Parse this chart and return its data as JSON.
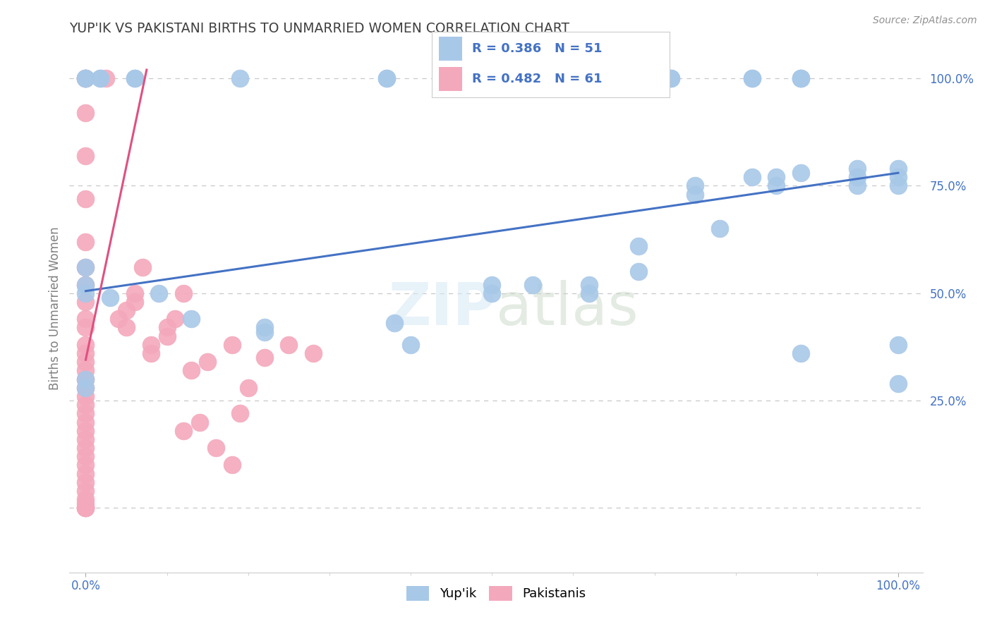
{
  "title": "YUP'IK VS PAKISTANI BIRTHS TO UNMARRIED WOMEN CORRELATION CHART",
  "source": "Source: ZipAtlas.com",
  "ylabel": "Births to Unmarried Women",
  "watermark": "ZIPatlas",
  "blue_color": "#A8C8E8",
  "pink_color": "#F4A8BC",
  "blue_line_color": "#4472C4",
  "pink_line_color": "#E05080",
  "title_color": "#404040",
  "axis_label_color": "#808080",
  "tick_color": "#4472C4",
  "grid_color": "#C8C8C8",
  "legend_text_color": "#4472C4",
  "blue_line": [
    0.0,
    1.0,
    0.505,
    0.78
  ],
  "pink_line": [
    0.0,
    0.075,
    0.345,
    1.02
  ],
  "yupik_points": [
    [
      0.0,
      1.0
    ],
    [
      0.0,
      1.0
    ],
    [
      0.0,
      1.0
    ],
    [
      0.018,
      1.0
    ],
    [
      0.018,
      1.0
    ],
    [
      0.06,
      1.0
    ],
    [
      0.06,
      1.0
    ],
    [
      0.19,
      1.0
    ],
    [
      0.37,
      1.0
    ],
    [
      0.37,
      1.0
    ],
    [
      0.72,
      1.0
    ],
    [
      0.72,
      1.0
    ],
    [
      0.82,
      1.0
    ],
    [
      0.82,
      1.0
    ],
    [
      0.88,
      1.0
    ],
    [
      0.88,
      1.0
    ],
    [
      0.88,
      1.0
    ],
    [
      0.0,
      0.56
    ],
    [
      0.0,
      0.52
    ],
    [
      0.0,
      0.5
    ],
    [
      0.03,
      0.49
    ],
    [
      0.09,
      0.5
    ],
    [
      0.13,
      0.44
    ],
    [
      0.22,
      0.42
    ],
    [
      0.4,
      0.38
    ],
    [
      0.5,
      0.52
    ],
    [
      0.5,
      0.5
    ],
    [
      0.55,
      0.52
    ],
    [
      0.62,
      0.52
    ],
    [
      0.62,
      0.5
    ],
    [
      0.68,
      0.61
    ],
    [
      0.68,
      0.55
    ],
    [
      0.75,
      0.75
    ],
    [
      0.75,
      0.73
    ],
    [
      0.78,
      0.65
    ],
    [
      0.82,
      0.77
    ],
    [
      0.85,
      0.77
    ],
    [
      0.85,
      0.75
    ],
    [
      0.88,
      0.78
    ],
    [
      0.95,
      0.79
    ],
    [
      0.95,
      0.77
    ],
    [
      0.95,
      0.75
    ],
    [
      1.0,
      0.79
    ],
    [
      1.0,
      0.77
    ],
    [
      1.0,
      0.75
    ],
    [
      1.0,
      0.38
    ],
    [
      1.0,
      0.29
    ],
    [
      0.88,
      0.36
    ],
    [
      0.38,
      0.43
    ],
    [
      0.22,
      0.41
    ],
    [
      0.0,
      0.3
    ],
    [
      0.0,
      0.28
    ]
  ],
  "pak_points": [
    [
      0.0,
      1.0
    ],
    [
      0.0,
      1.0
    ],
    [
      0.0,
      1.0
    ],
    [
      0.0,
      0.92
    ],
    [
      0.0,
      0.82
    ],
    [
      0.0,
      0.72
    ],
    [
      0.0,
      0.62
    ],
    [
      0.0,
      0.56
    ],
    [
      0.0,
      0.52
    ],
    [
      0.0,
      0.48
    ],
    [
      0.0,
      0.44
    ],
    [
      0.0,
      0.42
    ],
    [
      0.0,
      0.38
    ],
    [
      0.0,
      0.36
    ],
    [
      0.0,
      0.34
    ],
    [
      0.0,
      0.32
    ],
    [
      0.0,
      0.3
    ],
    [
      0.0,
      0.28
    ],
    [
      0.0,
      0.26
    ],
    [
      0.0,
      0.24
    ],
    [
      0.0,
      0.22
    ],
    [
      0.0,
      0.2
    ],
    [
      0.0,
      0.18
    ],
    [
      0.0,
      0.16
    ],
    [
      0.0,
      0.14
    ],
    [
      0.0,
      0.12
    ],
    [
      0.0,
      0.1
    ],
    [
      0.0,
      0.08
    ],
    [
      0.0,
      0.06
    ],
    [
      0.0,
      0.04
    ],
    [
      0.0,
      0.02
    ],
    [
      0.0,
      0.01
    ],
    [
      0.0,
      0.0
    ],
    [
      0.0,
      0.0
    ],
    [
      0.0,
      0.0
    ],
    [
      0.0,
      0.0
    ],
    [
      0.025,
      1.0
    ],
    [
      0.04,
      0.44
    ],
    [
      0.05,
      0.46
    ],
    [
      0.05,
      0.42
    ],
    [
      0.06,
      0.5
    ],
    [
      0.06,
      0.48
    ],
    [
      0.07,
      0.56
    ],
    [
      0.08,
      0.38
    ],
    [
      0.08,
      0.36
    ],
    [
      0.1,
      0.42
    ],
    [
      0.1,
      0.4
    ],
    [
      0.11,
      0.44
    ],
    [
      0.12,
      0.5
    ],
    [
      0.13,
      0.32
    ],
    [
      0.15,
      0.34
    ],
    [
      0.18,
      0.38
    ],
    [
      0.19,
      0.22
    ],
    [
      0.2,
      0.28
    ],
    [
      0.22,
      0.35
    ],
    [
      0.25,
      0.38
    ],
    [
      0.28,
      0.36
    ],
    [
      0.12,
      0.18
    ],
    [
      0.14,
      0.2
    ],
    [
      0.16,
      0.14
    ],
    [
      0.18,
      0.1
    ]
  ]
}
